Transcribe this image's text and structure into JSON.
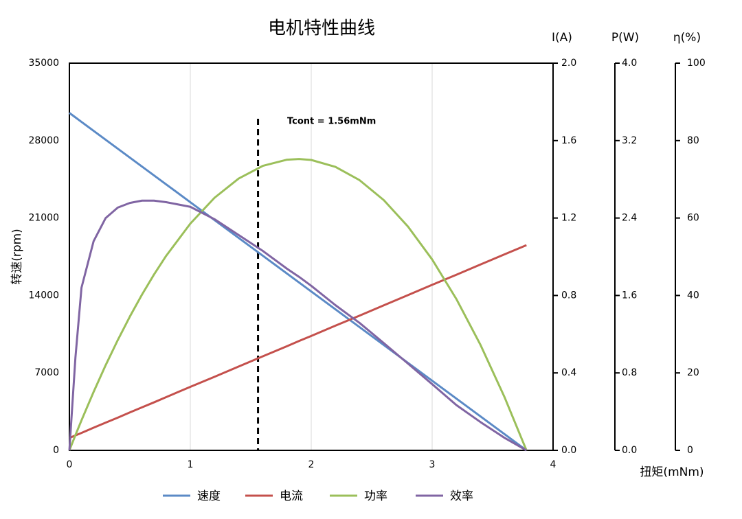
{
  "chart_data": {
    "type": "line",
    "title": "电机特性曲线",
    "x_label": "扭矩(mNm)",
    "y_label": "转速(rpm)",
    "y2_label": "I(A)",
    "y3_label": "P(W)",
    "y4_label": "η(%)",
    "x": [
      0,
      0.05,
      0.1,
      0.2,
      0.3,
      0.4,
      0.5,
      0.6,
      0.7,
      0.8,
      1.0,
      1.2,
      1.4,
      1.6,
      1.8,
      1.9,
      2.0,
      2.2,
      2.4,
      2.6,
      2.8,
      3.0,
      3.2,
      3.4,
      3.6,
      3.78
    ],
    "xlim": [
      0,
      4
    ],
    "xticks": [
      0,
      1,
      2,
      3,
      4
    ],
    "ylim": [
      0,
      35000
    ],
    "yticks": [
      0,
      7000,
      14000,
      21000,
      28000,
      35000
    ],
    "y2lim": [
      0,
      2
    ],
    "y2ticks": [
      {
        "value": 0,
        "label": "0.0"
      },
      {
        "value": 0.4,
        "label": "0.4"
      },
      {
        "value": 0.8,
        "label": "0.8"
      },
      {
        "value": 1.2,
        "label": "1.2"
      },
      {
        "value": 1.6,
        "label": "1.6"
      },
      {
        "value": 2,
        "label": "2.0"
      }
    ],
    "y3lim": [
      0,
      4
    ],
    "y3ticks": [
      {
        "value": 0,
        "label": "0.0"
      },
      {
        "value": 0.8,
        "label": "0.8"
      },
      {
        "value": 1.6,
        "label": "1.6"
      },
      {
        "value": 2.4,
        "label": "2.4"
      },
      {
        "value": 3.2,
        "label": "3.2"
      },
      {
        "value": 4,
        "label": "4.0"
      }
    ],
    "y4lim": [
      0,
      100
    ],
    "y4ticks": [
      0,
      20,
      40,
      60,
      80,
      100
    ],
    "grid": true,
    "reference_line": {
      "x": 1.56,
      "label": "Tcont = 1.56mNm"
    },
    "series": [
      {
        "name": "速度",
        "color": "#5b8ac6",
        "axis": "y",
        "values": [
          30500,
          30097,
          29693,
          28886,
          28079,
          27272,
          26466,
          25659,
          24852,
          24045,
          22431,
          20817,
          19204,
          17590,
          15976,
          15169,
          14362,
          12749,
          11135,
          9521,
          7907,
          6294,
          4680,
          3066,
          1452,
          0
        ]
      },
      {
        "name": "电流",
        "color": "#c4504c",
        "axis": "y2",
        "values": [
          0.064,
          0.077,
          0.09,
          0.117,
          0.143,
          0.169,
          0.196,
          0.222,
          0.248,
          0.275,
          0.328,
          0.38,
          0.433,
          0.486,
          0.538,
          0.565,
          0.591,
          0.644,
          0.696,
          0.749,
          0.802,
          0.855,
          0.907,
          0.96,
          1.013,
          1.06
        ]
      },
      {
        "name": "功率",
        "color": "#9bbf5a",
        "axis": "y3",
        "values": [
          0,
          0.157,
          0.31,
          0.603,
          0.88,
          1.139,
          1.382,
          1.608,
          1.817,
          2.009,
          2.342,
          2.609,
          2.808,
          2.939,
          3.003,
          3.01,
          3.0,
          2.929,
          2.791,
          2.585,
          2.312,
          1.972,
          1.564,
          1.089,
          0.546,
          0
        ]
      },
      {
        "name": "效率",
        "color": "#8065a3",
        "axis": "y4",
        "values": [
          0,
          24,
          42,
          54,
          60,
          62.7,
          63.9,
          64.5,
          64.5,
          64.1,
          62.9,
          59.7,
          55.6,
          51.5,
          46.9,
          44.8,
          42.5,
          37.5,
          32.9,
          27.7,
          22.4,
          17.1,
          11.7,
          7.3,
          3.2,
          0
        ]
      }
    ]
  }
}
